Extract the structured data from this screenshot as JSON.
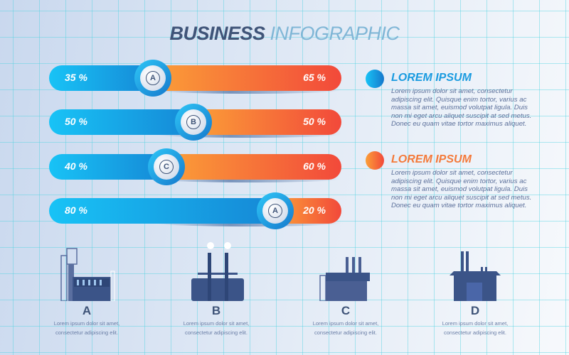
{
  "title": {
    "bold": "BUSINESS",
    "light": "INFOGRAPHIC"
  },
  "bars": [
    {
      "letter": "A",
      "left_pct": 35,
      "right_pct": 65,
      "left_label": "35 %",
      "right_label": "65 %"
    },
    {
      "letter": "B",
      "left_pct": 50,
      "right_pct": 50,
      "left_label": "50 %",
      "right_label": "50 %"
    },
    {
      "letter": "C",
      "left_pct": 40,
      "right_pct": 60,
      "left_label": "40 %",
      "right_label": "60 %"
    },
    {
      "letter": "A",
      "left_pct": 80,
      "right_pct": 20,
      "left_label": "80 %",
      "right_label": "20 %"
    }
  ],
  "colors": {
    "blue": "#1688d6",
    "orange": "#f2493a",
    "dark": "#3f5478"
  },
  "info": [
    {
      "heading": "LOREM IPSUM",
      "color": "blue",
      "text": "Lorem ipsum dolor sit amet, consectetur adipiscing elit. Quisque enim tortor, varius ac massa sit amet, euismod volutpat ligula. Duis non mi eget arcu aliquet suscipit at sed metus. Donec eu quam vitae tortor maximus aliquet."
    },
    {
      "heading": "LOREM IPSUM",
      "color": "orange",
      "text": "Lorem ipsum dolor sit amet, consectetur adipiscing elit. Quisque enim tortor, varius ac massa sit amet, euismod volutpat ligula. Duis non mi eget arcu aliquet suscipit at sed metus. Donec eu quam vitae tortor maximus aliquet."
    }
  ],
  "factories": [
    {
      "letter": "A",
      "icon": "factory-crane-icon",
      "line1": "Lorem ipsum dolor sit amet,",
      "line2": "consectetur adipiscing elit."
    },
    {
      "letter": "B",
      "icon": "factory-smokestacks-icon",
      "line1": "Lorem ipsum dolor sit amet,",
      "line2": "consectetur adipiscing elit."
    },
    {
      "letter": "C",
      "icon": "factory-chimneys-icon",
      "line1": "Lorem ipsum dolor sit amet,",
      "line2": "consectetur adipiscing elit."
    },
    {
      "letter": "D",
      "icon": "warehouse-icon",
      "line1": "Lorem ipsum dolor sit amet,",
      "line2": "consectetur adipiscing elit."
    }
  ]
}
